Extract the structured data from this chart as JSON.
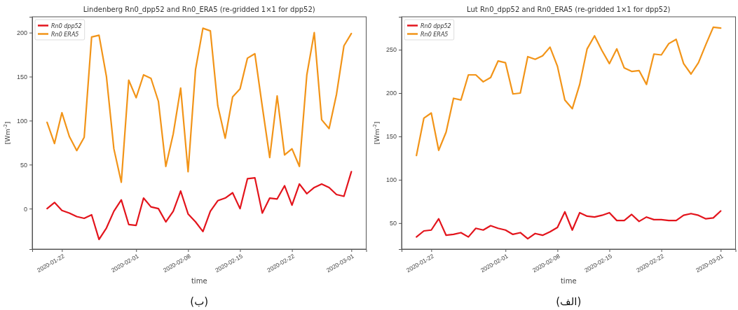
{
  "chart_data": [
    {
      "type": "line",
      "title": "Lindenberg Rn0_dpp52 and Rn0_ERA5 (re-gridded 1×1 for dpp52)",
      "xlabel": "time",
      "ylabel": "[Wm$^{-2}$]",
      "annotations": [
        "(ب)"
      ],
      "x": [
        "2020-01-20",
        "2020-01-21",
        "2020-01-22",
        "2020-01-23",
        "2020-01-24",
        "2020-01-25",
        "2020-01-26",
        "2020-01-27",
        "2020-01-28",
        "2020-01-29",
        "2020-01-30",
        "2020-01-31",
        "2020-02-01",
        "2020-02-02",
        "2020-02-03",
        "2020-02-04",
        "2020-02-05",
        "2020-02-06",
        "2020-02-07",
        "2020-02-08",
        "2020-02-09",
        "2020-02-10",
        "2020-02-11",
        "2020-02-12",
        "2020-02-13",
        "2020-02-14",
        "2020-02-15",
        "2020-02-16",
        "2020-02-17",
        "2020-02-18",
        "2020-02-19",
        "2020-02-20",
        "2020-02-21",
        "2020-02-22",
        "2020-02-23",
        "2020-02-24",
        "2020-02-25",
        "2020-02-26",
        "2020-02-27",
        "2020-02-28",
        "2020-02-29",
        "2020-03-01"
      ],
      "series": [
        {
          "name": "Rn0 dpp52",
          "color": "#e3141c",
          "values": [
            0,
            7,
            -2,
            -5,
            -9,
            -11,
            -7,
            -35,
            -22,
            -3,
            10,
            -18,
            -19,
            12,
            2,
            0,
            -15,
            -3,
            20,
            -6,
            -15,
            -26,
            -3,
            9,
            12,
            18,
            0,
            34,
            35,
            -5,
            12,
            11,
            26,
            4,
            28,
            17,
            24,
            28,
            24,
            16,
            14,
            42
          ]
        },
        {
          "name": "Rn0 ERA5",
          "color": "#f29418",
          "values": [
            98,
            74,
            109,
            82,
            66,
            81,
            195,
            197,
            150,
            68,
            30,
            146,
            126,
            152,
            148,
            122,
            48,
            85,
            137,
            42,
            158,
            205,
            202,
            117,
            80,
            127,
            136,
            171,
            176,
            116,
            58,
            128,
            61,
            68,
            48,
            152,
            200,
            101,
            91,
            130,
            185,
            199
          ]
        }
      ],
      "xlim": [
        "2020-01-18",
        "2020-03-03"
      ],
      "xticks": [
        "2020-01-22",
        "2020-02-01",
        "2020-02-08",
        "2020-02-15",
        "2020-02-22",
        "2020-03-01"
      ],
      "ylim": [
        -46,
        218
      ],
      "yticks": [
        0,
        50,
        100,
        150,
        200
      ],
      "legend": "top left",
      "grid": false,
      "line_style": "solid",
      "marker": "none"
    },
    {
      "type": "line",
      "title": "Lut Rn0_dpp52 and Rn0_ERA5 (re-gridded 1×1 for dpp52)",
      "xlabel": "time",
      "ylabel": "[Wm$^{-2}$]",
      "annotations": [
        "(الف)"
      ],
      "x": [
        "2020-01-20",
        "2020-01-21",
        "2020-01-22",
        "2020-01-23",
        "2020-01-24",
        "2020-01-25",
        "2020-01-26",
        "2020-01-27",
        "2020-01-28",
        "2020-01-29",
        "2020-01-30",
        "2020-01-31",
        "2020-02-01",
        "2020-02-02",
        "2020-02-03",
        "2020-02-04",
        "2020-02-05",
        "2020-02-06",
        "2020-02-07",
        "2020-02-08",
        "2020-02-09",
        "2020-02-10",
        "2020-02-11",
        "2020-02-12",
        "2020-02-13",
        "2020-02-14",
        "2020-02-15",
        "2020-02-16",
        "2020-02-17",
        "2020-02-18",
        "2020-02-19",
        "2020-02-20",
        "2020-02-21",
        "2020-02-22",
        "2020-02-23",
        "2020-02-24",
        "2020-02-25",
        "2020-02-26",
        "2020-02-27",
        "2020-02-28",
        "2020-02-29",
        "2020-03-01"
      ],
      "series": [
        {
          "name": "Rn0 dpp52",
          "color": "#e3141c",
          "values": [
            34,
            41,
            42,
            55,
            36,
            37,
            39,
            34,
            44,
            42,
            47,
            44,
            42,
            37,
            39,
            32,
            38,
            36,
            40,
            45,
            63,
            42,
            62,
            58,
            57,
            59,
            62,
            53,
            53,
            60,
            52,
            57,
            54,
            54,
            53,
            53,
            59,
            61,
            59,
            55,
            56,
            64
          ]
        },
        {
          "name": "Rn0 ERA5",
          "color": "#f29418",
          "values": [
            128,
            171,
            177,
            134,
            155,
            194,
            192,
            221,
            221,
            213,
            218,
            237,
            235,
            199,
            200,
            242,
            239,
            243,
            253,
            231,
            192,
            182,
            210,
            251,
            266,
            249,
            234,
            251,
            229,
            225,
            226,
            210,
            245,
            244,
            257,
            262,
            234,
            222,
            235,
            256,
            276,
            275
          ]
        }
      ],
      "xlim": [
        "2020-01-18",
        "2020-03-03"
      ],
      "xticks": [
        "2020-01-22",
        "2020-02-01",
        "2020-02-08",
        "2020-02-15",
        "2020-02-22",
        "2020-03-01"
      ],
      "ylim": [
        20,
        288
      ],
      "yticks": [
        50,
        100,
        150,
        200,
        250
      ],
      "legend": "top left",
      "grid": false,
      "line_style": "solid",
      "marker": "none"
    }
  ]
}
